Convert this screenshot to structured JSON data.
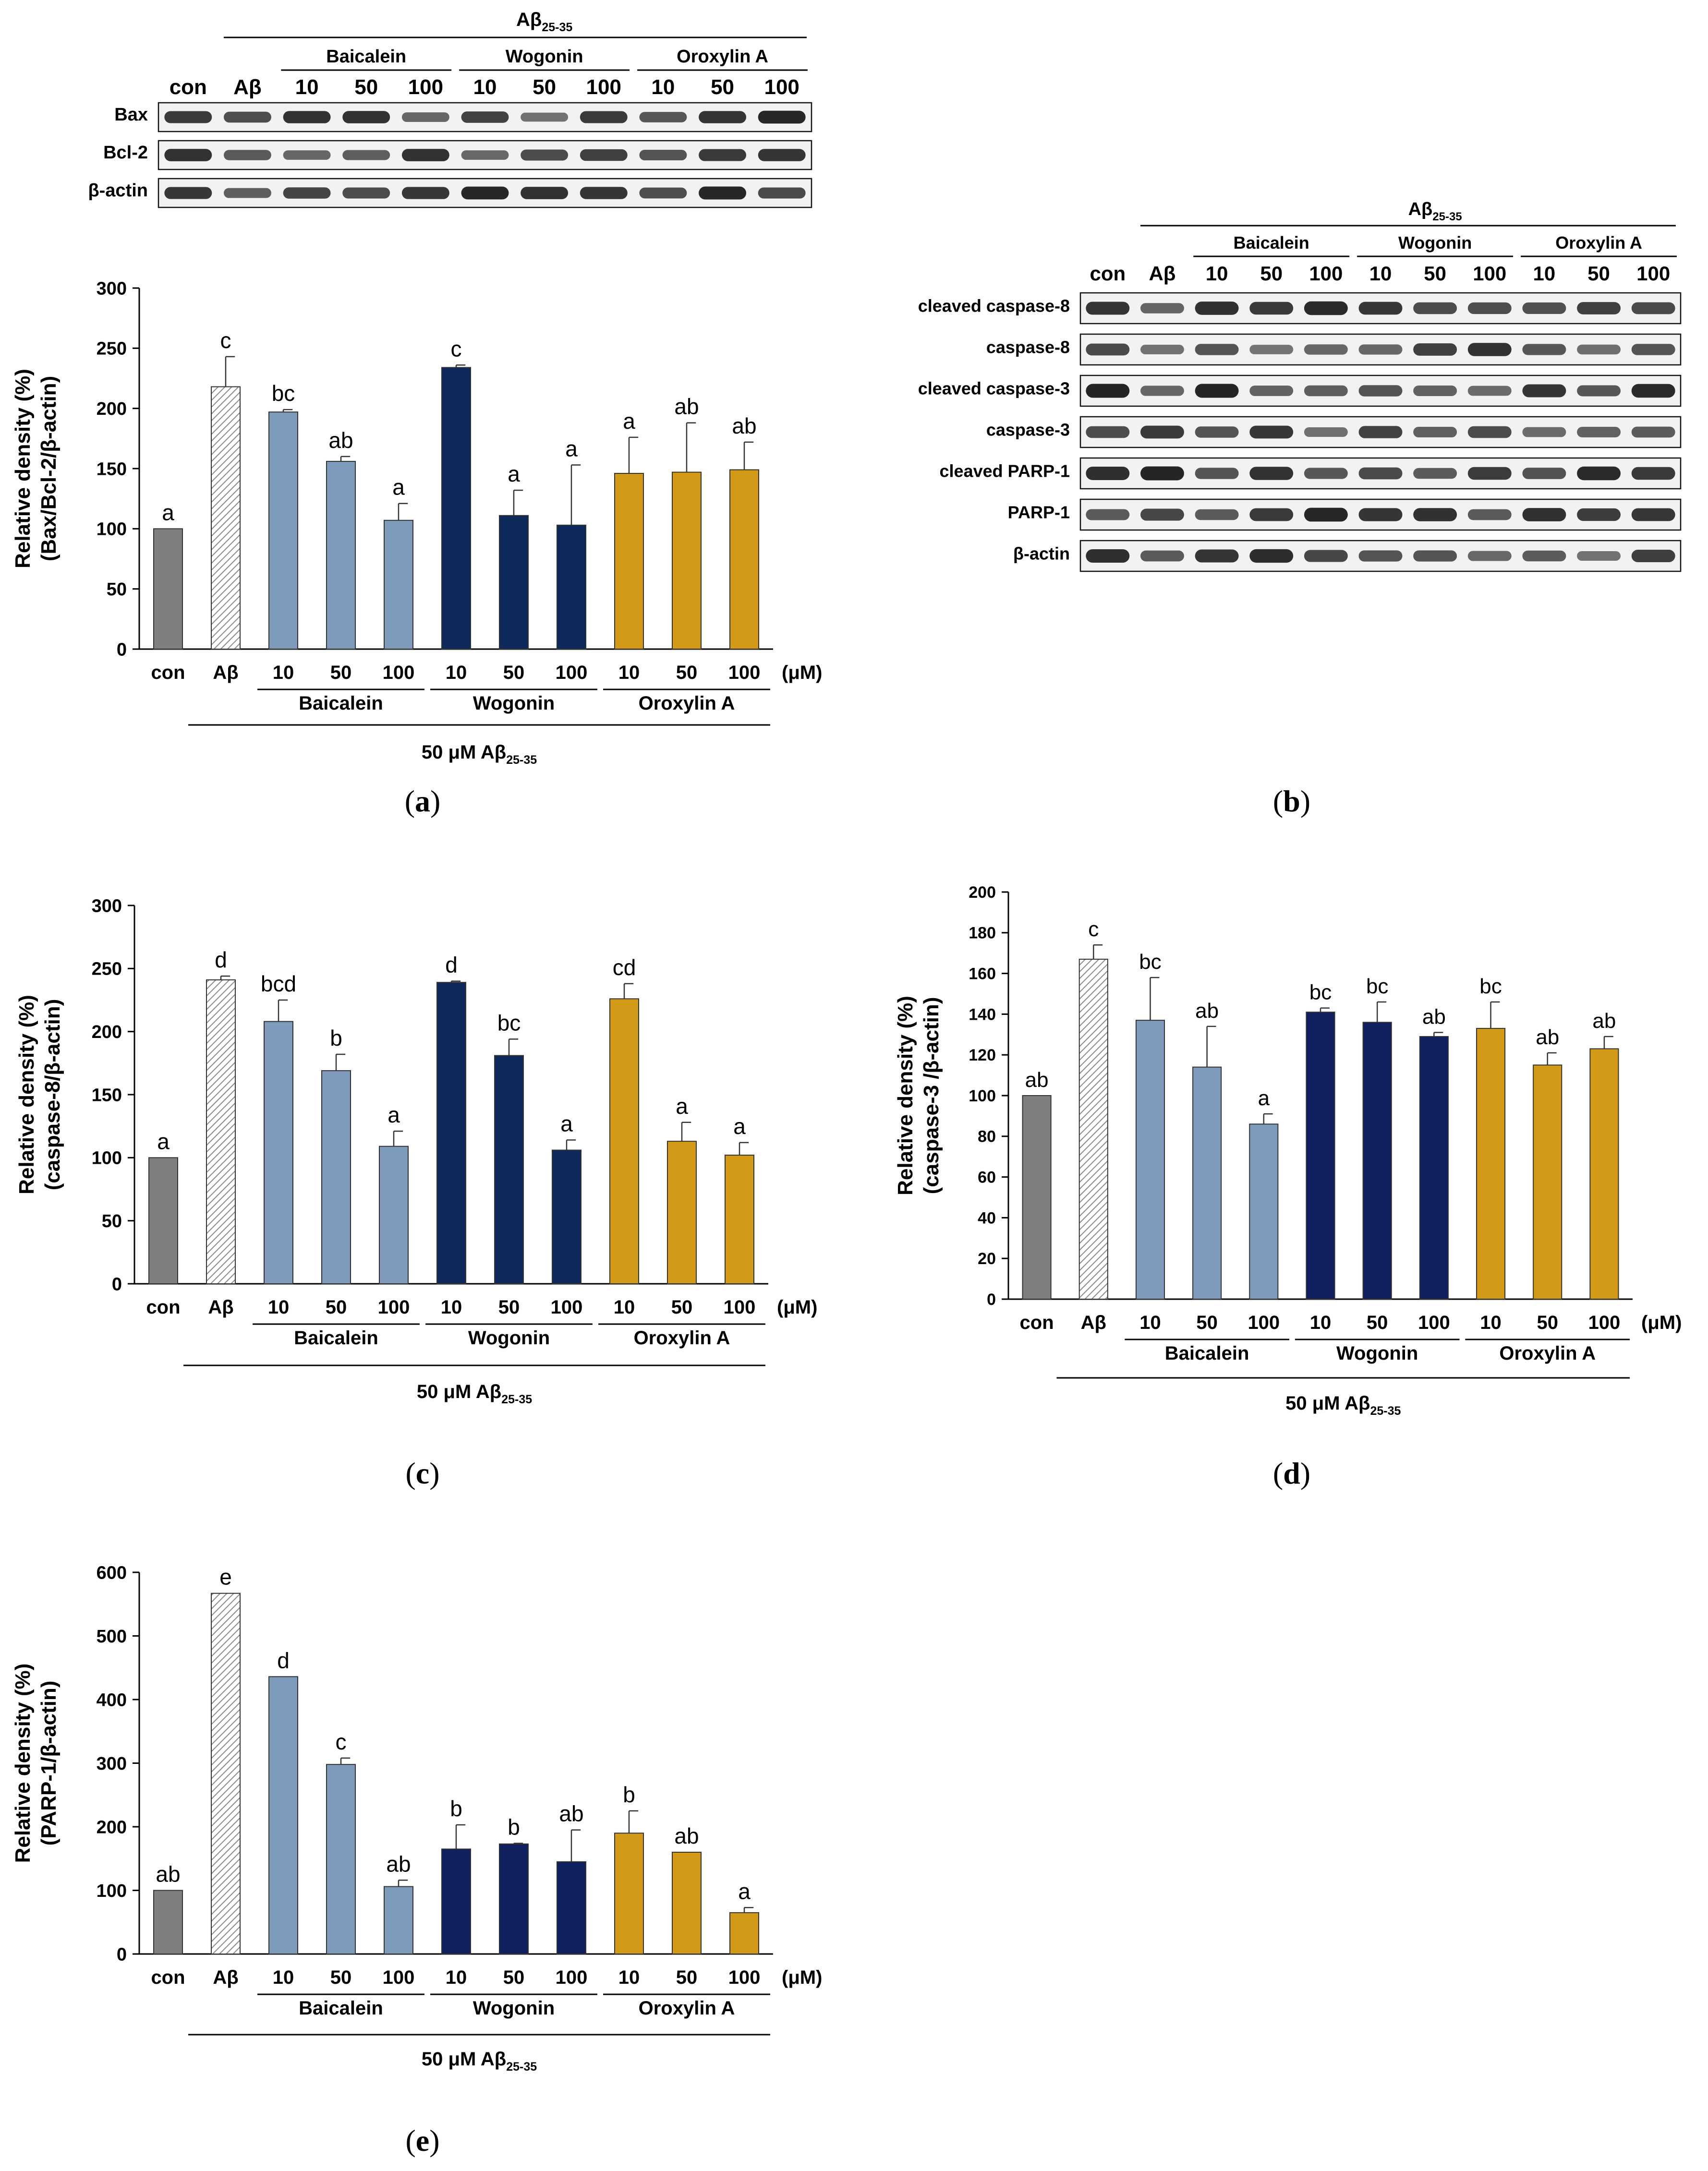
{
  "figure": {
    "panel_labels": [
      "a",
      "b",
      "c",
      "d",
      "e"
    ],
    "colors": {
      "con": "#7f7f7f",
      "abeta_hatch": "#bfbfbf",
      "baicalein": "#7f9bbb",
      "wogonin": "#0d2a5a",
      "wogonin_d": "#10205e",
      "oroxylin": "#d39a17",
      "axis": "#000000"
    }
  },
  "blot_a": {
    "header": "Aβ",
    "header_sub": "25-35",
    "groups": [
      "Baicalein",
      "Wogonin",
      "Oroxylin A"
    ],
    "lanes": [
      "con",
      "Aβ",
      "10",
      "50",
      "100",
      "10",
      "50",
      "100",
      "10",
      "50",
      "100"
    ],
    "rows": [
      "Bax",
      "Bcl-2",
      "β-actin"
    ]
  },
  "blot_b": {
    "header": "Aβ",
    "header_sub": "25-35",
    "groups": [
      "Baicalein",
      "Wogonin",
      "Oroxylin A"
    ],
    "lanes": [
      "con",
      "Aβ",
      "10",
      "50",
      "100",
      "10",
      "50",
      "100",
      "10",
      "50",
      "100"
    ],
    "rows": [
      "cleaved caspase-8",
      "caspase-8",
      "cleaved caspase-3",
      "caspase-3",
      "cleaved PARP-1",
      "PARP-1",
      "β-actin"
    ]
  },
  "chart_data": [
    {
      "type": "bar",
      "panel": "a",
      "ylabel_line1": "Relative density (%)",
      "ylabel_line2": "(Bax/Bcl-2/β-actin)",
      "ylim": [
        0,
        300
      ],
      "yticks": [
        0,
        50,
        100,
        150,
        200,
        250,
        300
      ],
      "categories": [
        "con",
        "Aβ",
        "10",
        "50",
        "100",
        "10",
        "50",
        "100",
        "10",
        "50",
        "100"
      ],
      "unit_label": "(μM)",
      "groups": [
        "Baicalein",
        "Wogonin",
        "Oroxylin A"
      ],
      "treatment_label": "50 μM Aβ",
      "treatment_sub": "25-35",
      "values": [
        100,
        218,
        197,
        156,
        107,
        234,
        111,
        103,
        146,
        147,
        149
      ],
      "errors": [
        0,
        25,
        2,
        4,
        14,
        2,
        21,
        50,
        30,
        41,
        23
      ],
      "letters": [
        "a",
        "c",
        "bc",
        "ab",
        "a",
        "c",
        "a",
        "a",
        "a",
        "ab",
        "ab"
      ]
    },
    {
      "type": "bar",
      "panel": "c",
      "ylabel_line1": "Relative density (%)",
      "ylabel_line2": "(caspase-8/β-actin)",
      "ylim": [
        0,
        300
      ],
      "yticks": [
        0,
        50,
        100,
        150,
        200,
        250,
        300
      ],
      "categories": [
        "con",
        "Aβ",
        "10",
        "50",
        "100",
        "10",
        "50",
        "100",
        "10",
        "50",
        "100"
      ],
      "unit_label": "(μM)",
      "groups": [
        "Baicalein",
        "Wogonin",
        "Oroxylin A"
      ],
      "treatment_label": "50 μM Aβ",
      "treatment_sub": "25-35",
      "values": [
        100,
        241,
        208,
        169,
        109,
        239,
        181,
        106,
        226,
        113,
        102
      ],
      "errors": [
        0,
        3,
        17,
        13,
        12,
        1,
        13,
        8,
        12,
        15,
        10
      ],
      "letters": [
        "a",
        "d",
        "bcd",
        "b",
        "a",
        "d",
        "bc",
        "a",
        "cd",
        "a",
        "a"
      ]
    },
    {
      "type": "bar",
      "panel": "d",
      "ylabel_line1": "Relative density (%)",
      "ylabel_line2": "(caspase-3 /β-actin)",
      "ylim": [
        0,
        200
      ],
      "yticks": [
        0,
        20,
        40,
        60,
        80,
        100,
        120,
        140,
        160,
        180,
        200
      ],
      "categories": [
        "con",
        "Aβ",
        "10",
        "50",
        "100",
        "10",
        "50",
        "100",
        "10",
        "50",
        "100"
      ],
      "unit_label": "(μM)",
      "groups": [
        "Baicalein",
        "Wogonin",
        "Oroxylin A"
      ],
      "treatment_label": "50 μM Aβ",
      "treatment_sub": "25-35",
      "values": [
        100,
        167,
        137,
        114,
        86,
        141,
        136,
        129,
        133,
        115,
        123
      ],
      "errors": [
        0,
        7,
        21,
        20,
        5,
        2,
        10,
        2,
        13,
        6,
        6
      ],
      "letters": [
        "ab",
        "c",
        "bc",
        "ab",
        "a",
        "bc",
        "bc",
        "ab",
        "bc",
        "ab",
        "ab"
      ]
    },
    {
      "type": "bar",
      "panel": "e",
      "ylabel_line1": "Relative density (%)",
      "ylabel_line2": "(PARP-1/β-actin)",
      "ylim": [
        0,
        600
      ],
      "yticks": [
        0,
        100,
        200,
        300,
        400,
        500,
        600
      ],
      "categories": [
        "con",
        "Aβ",
        "10",
        "50",
        "100",
        "10",
        "50",
        "100",
        "10",
        "50",
        "100"
      ],
      "unit_label": "(μM)",
      "groups": [
        "Baicalein",
        "Wogonin",
        "Oroxylin A"
      ],
      "treatment_label": "50 μM Aβ",
      "treatment_sub": "25-35",
      "values": [
        100,
        567,
        436,
        298,
        106,
        165,
        173,
        145,
        190,
        160,
        65
      ],
      "errors": [
        0,
        0,
        0,
        10,
        10,
        38,
        1,
        50,
        35,
        0,
        8
      ],
      "letters": [
        "ab",
        "e",
        "d",
        "c",
        "ab",
        "b",
        "b",
        "ab",
        "b",
        "ab",
        "a"
      ]
    }
  ]
}
